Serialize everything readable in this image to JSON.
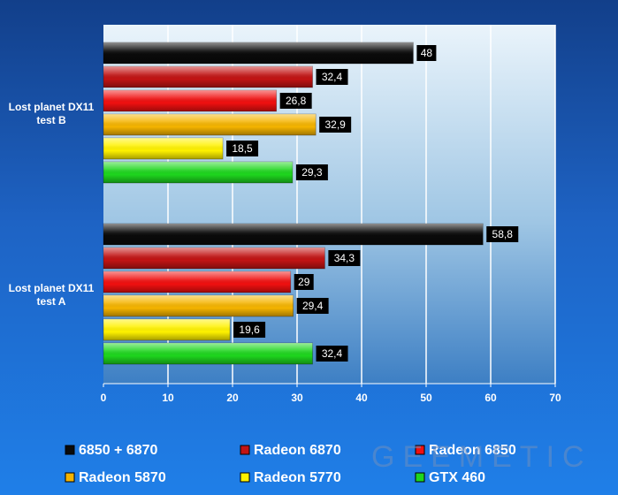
{
  "chart_data": {
    "type": "bar",
    "orientation": "horizontal",
    "title": "",
    "xlabel": "",
    "ylabel": "",
    "xlim": [
      0,
      70
    ],
    "x_ticks": [
      0,
      10,
      20,
      30,
      40,
      50,
      60,
      70
    ],
    "grid": "vertical",
    "legend_position": "bottom",
    "categories": [
      "Lost planet DX11 test B",
      "Lost planet DX11 test A"
    ],
    "series": [
      {
        "name": "6850 + 6870",
        "color": "#0a0a0a",
        "values": [
          48,
          58.8
        ],
        "labels": [
          "48",
          "58,8"
        ]
      },
      {
        "name": "Radeon 6870",
        "color": "#c21414",
        "values": [
          32.4,
          34.3
        ],
        "labels": [
          "32,4",
          "34,3"
        ]
      },
      {
        "name": "Radeon 6850",
        "color": "#f01010",
        "values": [
          26.8,
          29
        ],
        "labels": [
          "26,8",
          "29"
        ]
      },
      {
        "name": "Radeon 5870",
        "color": "#f5b400",
        "values": [
          32.9,
          29.4
        ],
        "labels": [
          "32,9",
          "29,4"
        ]
      },
      {
        "name": "Radeon 5770",
        "color": "#fff200",
        "values": [
          18.5,
          19.6
        ],
        "labels": [
          "18,5",
          "19,6"
        ]
      },
      {
        "name": "GTX 460",
        "color": "#1ed61e",
        "values": [
          29.3,
          32.4
        ],
        "labels": [
          "29,3",
          "32,4"
        ]
      }
    ]
  },
  "watermark": "GEEMETIC"
}
